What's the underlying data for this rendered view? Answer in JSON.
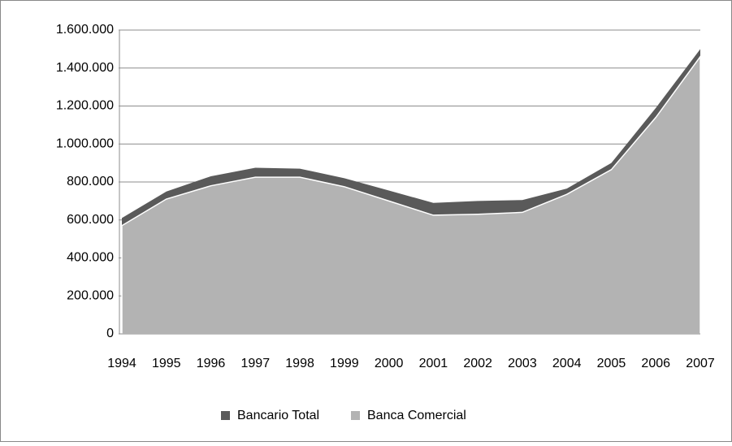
{
  "chart_data": {
    "type": "area",
    "categories": [
      "1994",
      "1995",
      "1996",
      "1997",
      "1998",
      "1999",
      "2000",
      "2001",
      "2002",
      "2003",
      "2004",
      "2005",
      "2006",
      "2007"
    ],
    "series": [
      {
        "name": "Bancario Total",
        "color": "#5a5a5a",
        "values": [
          610000,
          750000,
          830000,
          875000,
          870000,
          820000,
          755000,
          690000,
          700000,
          705000,
          765000,
          900000,
          1190000,
          1500000
        ]
      },
      {
        "name": "Banca Comercial",
        "color": "#b3b3b3",
        "values": [
          570000,
          710000,
          780000,
          825000,
          825000,
          775000,
          700000,
          625000,
          630000,
          640000,
          735000,
          865000,
          1140000,
          1460000
        ]
      }
    ],
    "ylim": [
      0,
      1600000
    ],
    "yticks": [
      0,
      {
        "value": 200000,
        "label": "200.000"
      },
      {
        "value": 400000,
        "label": "400.000"
      },
      {
        "value": 600000,
        "label": "600.000"
      },
      {
        "value": 800000,
        "label": "800.000"
      },
      {
        "value": 1000000,
        "label": "1.000.000"
      },
      {
        "value": 1200000,
        "label": "1.200.000"
      },
      {
        "value": 1400000,
        "label": "1.400.000"
      },
      {
        "value": 1600000,
        "label": "1.600.000"
      }
    ],
    "grid": true,
    "legend": "bottom"
  }
}
